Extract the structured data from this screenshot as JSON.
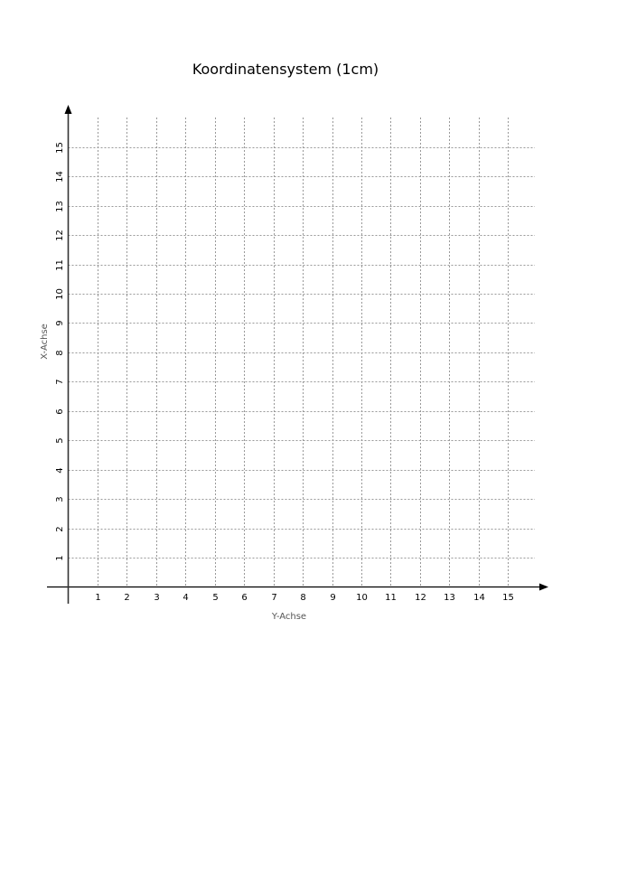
{
  "title": "Koordinatensystem (1cm)",
  "x_axis_label": "Y-Achse",
  "y_axis_label": "X-Achse",
  "x_ticks": [
    "1",
    "2",
    "3",
    "4",
    "5",
    "6",
    "7",
    "8",
    "9",
    "10",
    "11",
    "12",
    "13",
    "14",
    "15"
  ],
  "y_ticks": [
    "1",
    "2",
    "3",
    "4",
    "5",
    "6",
    "7",
    "8",
    "9",
    "10",
    "11",
    "12",
    "13",
    "14",
    "15"
  ],
  "grid": "dotted",
  "colors": {
    "axis": "#000000",
    "grid": "#999999"
  }
}
